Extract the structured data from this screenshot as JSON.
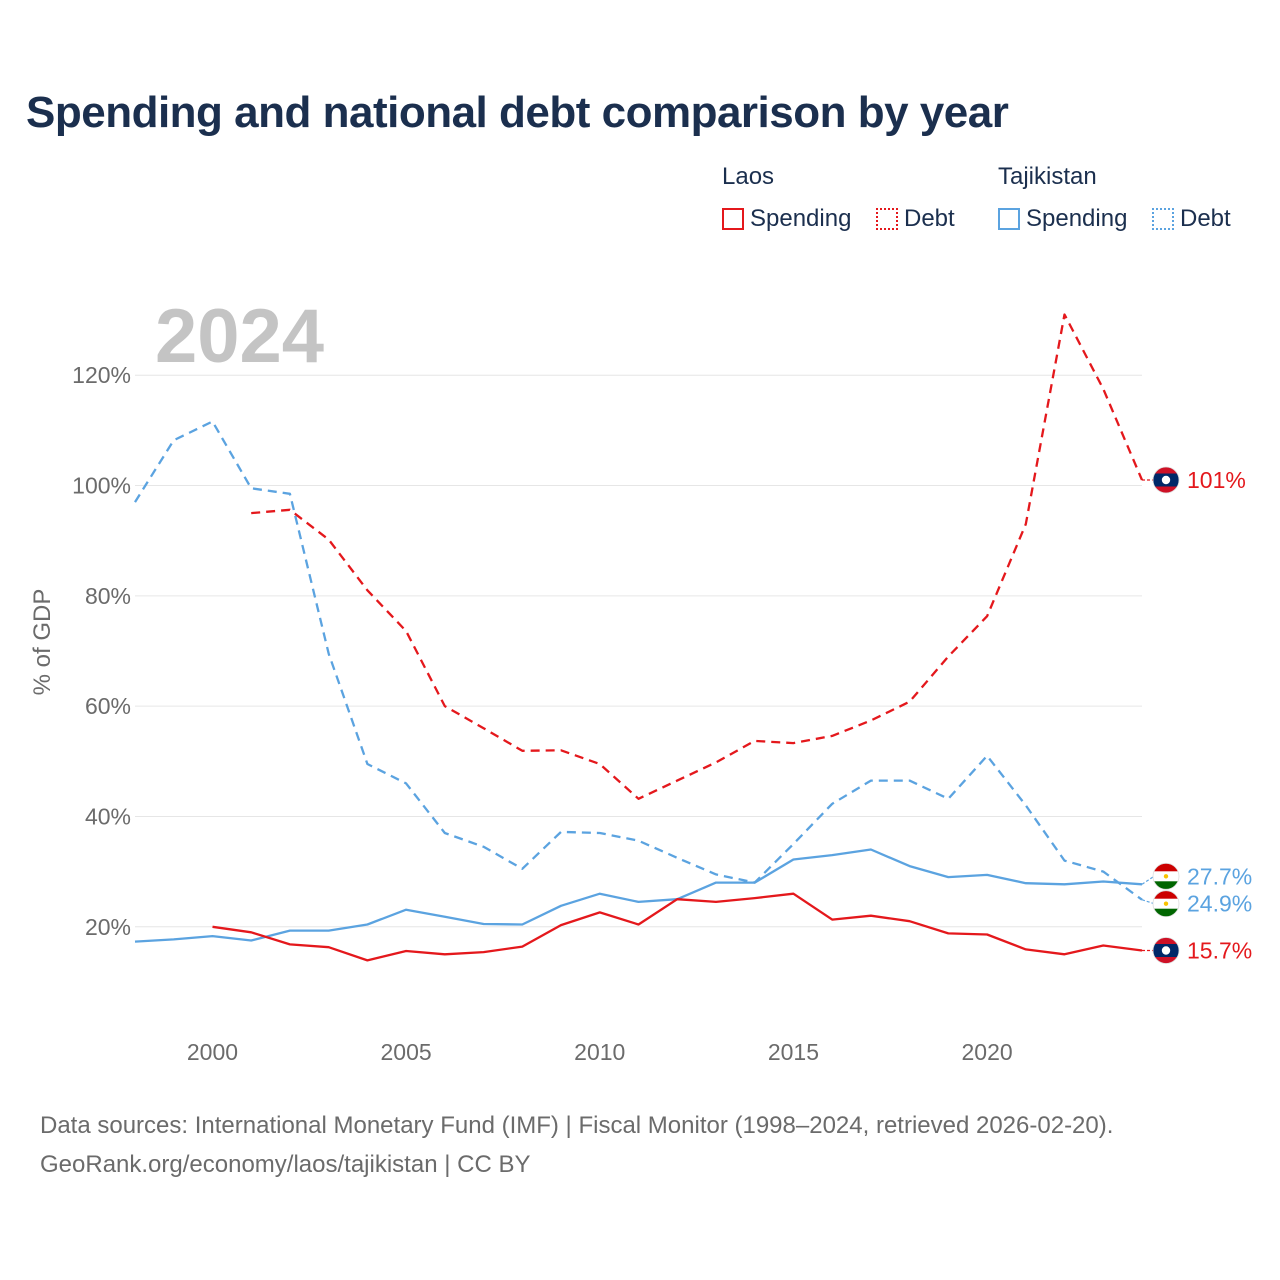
{
  "title": "Spending and national debt comparison by year",
  "legend": {
    "laos": {
      "country": "Laos",
      "spending_label": "Spending",
      "debt_label": "Debt",
      "color": "#e4181c"
    },
    "tajikistan": {
      "country": "Tajikistan",
      "spending_label": "Spending",
      "debt_label": "Debt",
      "color": "#5ba3e0"
    }
  },
  "year_watermark": "2024",
  "source": {
    "line1": "Data sources: International Monetary Fund (IMF) | Fiscal Monitor (1998–2024, retrieved 2026-02-20).",
    "line2": "GeoRank.org/economy/laos/tajikistan | CC BY"
  },
  "chart_data": {
    "type": "line",
    "title": "Spending and national debt comparison by year",
    "ylabel": "% of GDP",
    "xlabel": "",
    "xlim": [
      1998,
      2024
    ],
    "ylim": [
      4,
      134
    ],
    "x_ticks": [
      2000,
      2005,
      2010,
      2015,
      2020
    ],
    "y_ticks": [
      {
        "value": 20,
        "label": "20%"
      },
      {
        "value": 40,
        "label": "40%"
      },
      {
        "value": 60,
        "label": "60%"
      },
      {
        "value": 80,
        "label": "80%"
      },
      {
        "value": 100,
        "label": "100%"
      },
      {
        "value": 120,
        "label": "120%"
      }
    ],
    "series": [
      {
        "name": "Tajikistan Debt",
        "country": "tajikistan",
        "style": "dashed",
        "color": "#5ba3e0",
        "x": [
          1998,
          1999,
          2000,
          2001,
          2002,
          2003,
          2004,
          2005,
          2006,
          2007,
          2008,
          2009,
          2010,
          2011,
          2012,
          2013,
          2014,
          2015,
          2016,
          2017,
          2018,
          2019,
          2020,
          2021,
          2022,
          2023,
          2024
        ],
        "values": [
          97,
          108.2,
          111.6,
          99.5,
          98.5,
          69.5,
          49.5,
          46,
          37,
          34.5,
          30.5,
          37.2,
          37,
          35.6,
          32.5,
          29.5,
          28,
          35,
          42.3,
          46.5,
          46.5,
          43.2,
          51,
          42,
          32,
          30,
          24.9
        ],
        "end_label": "24.9%"
      },
      {
        "name": "Tajikistan Spending",
        "country": "tajikistan",
        "style": "solid",
        "color": "#5ba3e0",
        "x": [
          1998,
          1999,
          2000,
          2001,
          2002,
          2003,
          2004,
          2005,
          2006,
          2007,
          2008,
          2009,
          2010,
          2011,
          2012,
          2013,
          2014,
          2015,
          2016,
          2017,
          2018,
          2019,
          2020,
          2021,
          2022,
          2023,
          2024
        ],
        "values": [
          17.3,
          17.7,
          18.3,
          17.5,
          19.3,
          19.3,
          20.4,
          23.1,
          21.8,
          20.5,
          20.4,
          23.8,
          26,
          24.5,
          25,
          28,
          28,
          32.2,
          33,
          34,
          31,
          29,
          29.4,
          27.9,
          27.7,
          28.2,
          27.7
        ],
        "end_label": "27.7%"
      },
      {
        "name": "Laos Debt",
        "country": "laos",
        "style": "dashed",
        "color": "#e4181c",
        "x": [
          2001,
          2002,
          2003,
          2004,
          2005,
          2006,
          2007,
          2008,
          2009,
          2010,
          2011,
          2012,
          2013,
          2014,
          2015,
          2016,
          2017,
          2018,
          2019,
          2020,
          2021,
          2022,
          2023,
          2024
        ],
        "values": [
          95,
          95.6,
          90.2,
          81,
          73.6,
          60,
          56,
          51.9,
          52,
          49.5,
          43.2,
          46.5,
          49.8,
          53.7,
          53.3,
          54.6,
          57.4,
          60.8,
          69,
          76.3,
          93,
          131,
          117.5,
          101
        ],
        "end_label": "101%"
      },
      {
        "name": "Laos Spending",
        "country": "laos",
        "style": "solid",
        "color": "#e4181c",
        "x": [
          2000,
          2001,
          2002,
          2003,
          2004,
          2005,
          2006,
          2007,
          2008,
          2009,
          2010,
          2011,
          2012,
          2013,
          2014,
          2015,
          2016,
          2017,
          2018,
          2019,
          2020,
          2021,
          2022,
          2023,
          2024
        ],
        "values": [
          20,
          19,
          16.8,
          16.3,
          13.9,
          15.6,
          15,
          15.4,
          16.4,
          20.3,
          22.6,
          20.4,
          25,
          24.5,
          25.2,
          26,
          21.3,
          22,
          21,
          18.8,
          18.6,
          15.9,
          15,
          16.6,
          15.7
        ],
        "end_label": "15.7%"
      }
    ]
  }
}
